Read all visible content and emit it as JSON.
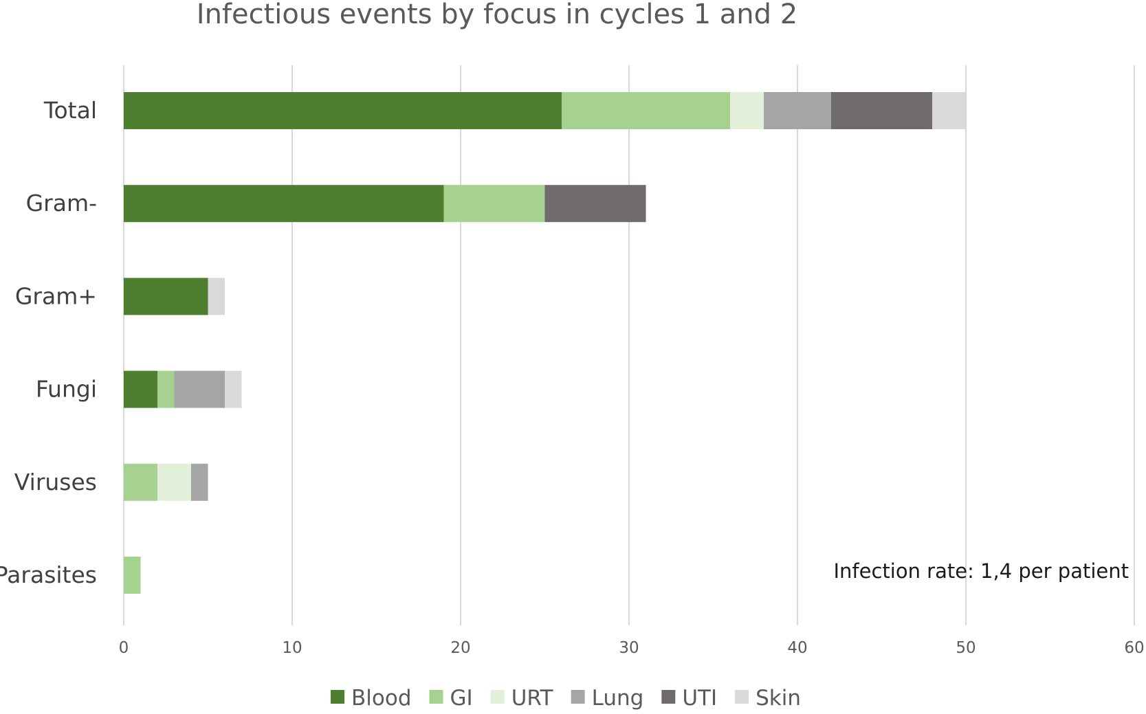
{
  "chart_data": {
    "type": "bar",
    "orientation": "horizontal",
    "stacked": true,
    "title": "Infectious events by focus in cycles 1 and 2",
    "xlabel": "",
    "ylabel": "",
    "xlim": [
      0,
      60
    ],
    "x_ticks": [
      0,
      10,
      20,
      30,
      40,
      50,
      60
    ],
    "grid": "vertical",
    "legend_position": "bottom",
    "categories": [
      "Total",
      "Gram-",
      "Gram+",
      "Fungi",
      "Viruses",
      "Parasites"
    ],
    "series": [
      {
        "name": "Blood",
        "color": "#4e7f31",
        "values": [
          26,
          19,
          5,
          2,
          0,
          0
        ]
      },
      {
        "name": "GI",
        "color": "#a6d18e",
        "values": [
          10,
          6,
          0,
          1,
          2,
          1
        ]
      },
      {
        "name": "URT",
        "color": "#e2f0d9",
        "values": [
          2,
          0,
          0,
          0,
          2,
          0
        ]
      },
      {
        "name": "Lung",
        "color": "#a5a5a5",
        "values": [
          4,
          0,
          0,
          3,
          1,
          0
        ]
      },
      {
        "name": "UTI",
        "color": "#706b6b",
        "values": [
          6,
          6,
          0,
          0,
          0,
          0
        ]
      },
      {
        "name": "Skin",
        "color": "#d9d9d9",
        "values": [
          2,
          0,
          1,
          1,
          0,
          0
        ]
      }
    ],
    "annotation": "Infection rate: 1,4 per patient"
  }
}
